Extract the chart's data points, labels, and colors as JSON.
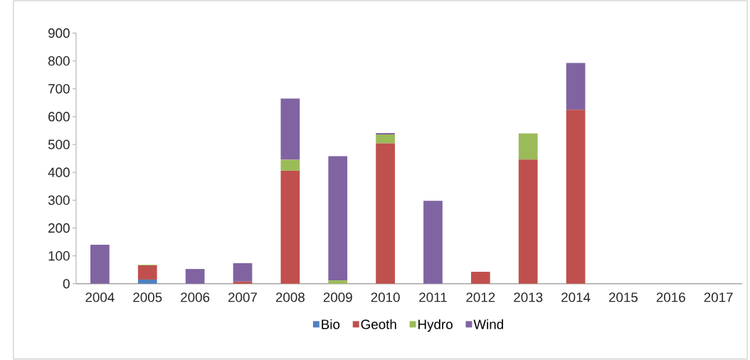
{
  "chart_data": {
    "type": "bar",
    "stacked": true,
    "categories": [
      "2004",
      "2005",
      "2006",
      "2007",
      "2008",
      "2009",
      "2010",
      "2011",
      "2012",
      "2013",
      "2014",
      "2015",
      "2016",
      "2017"
    ],
    "series": [
      {
        "name": "Bio",
        "color": "#4f81bd",
        "values": [
          0,
          15,
          0,
          0,
          0,
          0,
          0,
          0,
          0,
          0,
          0,
          0,
          0,
          0
        ]
      },
      {
        "name": "Geoth",
        "color": "#c0504d",
        "values": [
          0,
          51,
          0,
          8,
          406,
          0,
          504,
          0,
          43,
          446,
          625,
          0,
          0,
          0
        ]
      },
      {
        "name": "Hydro",
        "color": "#9bbb59",
        "values": [
          0,
          2,
          0,
          0,
          39,
          12,
          32,
          0,
          0,
          94,
          0,
          0,
          0,
          0
        ]
      },
      {
        "name": "Wind",
        "color": "#8064a2",
        "values": [
          140,
          0,
          53,
          66,
          220,
          446,
          5,
          298,
          0,
          0,
          168,
          0,
          0,
          0
        ]
      }
    ],
    "ylim": [
      0,
      900
    ],
    "yticks": [
      0,
      100,
      200,
      300,
      400,
      500,
      600,
      700,
      800,
      900
    ],
    "grid": false,
    "legend": "bottom"
  }
}
